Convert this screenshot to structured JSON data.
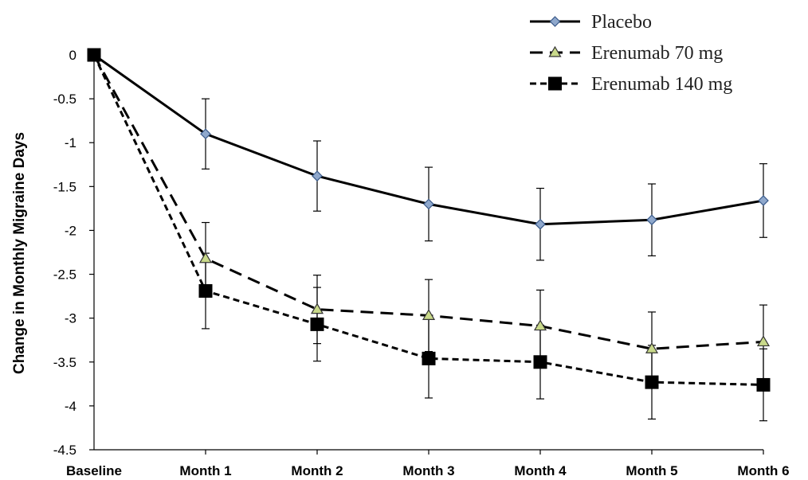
{
  "chart_data": {
    "type": "line",
    "title": "",
    "xlabel": "",
    "ylabel": "Change in Monthly Migraine Days",
    "categories": [
      "Baseline",
      "Month 1",
      "Month 2",
      "Month 3",
      "Month 4",
      "Month 5",
      "Month 6"
    ],
    "ylim": [
      -4.5,
      0
    ],
    "yticks": [
      0,
      -0.5,
      -1,
      -1.5,
      -2,
      -2.5,
      -3,
      -3.5,
      -4,
      -4.5
    ],
    "ytick_labels": [
      "0",
      "-0.5",
      "-1",
      "-1.5",
      "-2",
      "-2.5",
      "-3",
      "-3.5",
      "-4",
      "-4.5"
    ],
    "grid": false,
    "legend_position": "top-right",
    "series": [
      {
        "name": "Placebo",
        "values": [
          0,
          -0.9,
          -1.38,
          -1.7,
          -1.93,
          -1.88,
          -1.66
        ],
        "error": [
          0,
          0.4,
          0.4,
          0.42,
          0.41,
          0.41,
          0.42
        ],
        "color": "#000000",
        "marker": "diamond",
        "marker_color": "#8fa8cc",
        "line_style": "solid"
      },
      {
        "name": "Erenumab 70 mg",
        "values": [
          0,
          -2.32,
          -2.9,
          -2.97,
          -3.09,
          -3.35,
          -3.27
        ],
        "error": [
          0,
          0.41,
          0.39,
          0.41,
          0.41,
          0.42,
          0.42
        ],
        "color": "#000000",
        "marker": "triangle",
        "marker_color": "#c9d98a",
        "line_style": "long-dash"
      },
      {
        "name": "Erenumab 140 mg",
        "values": [
          0,
          -2.69,
          -3.07,
          -3.46,
          -3.5,
          -3.73,
          -3.76
        ],
        "error": [
          0,
          0.43,
          0.42,
          0.45,
          0.42,
          0.42,
          0.41
        ],
        "color": "#000000",
        "marker": "square",
        "marker_color": "#000000",
        "line_style": "short-dash"
      }
    ]
  }
}
